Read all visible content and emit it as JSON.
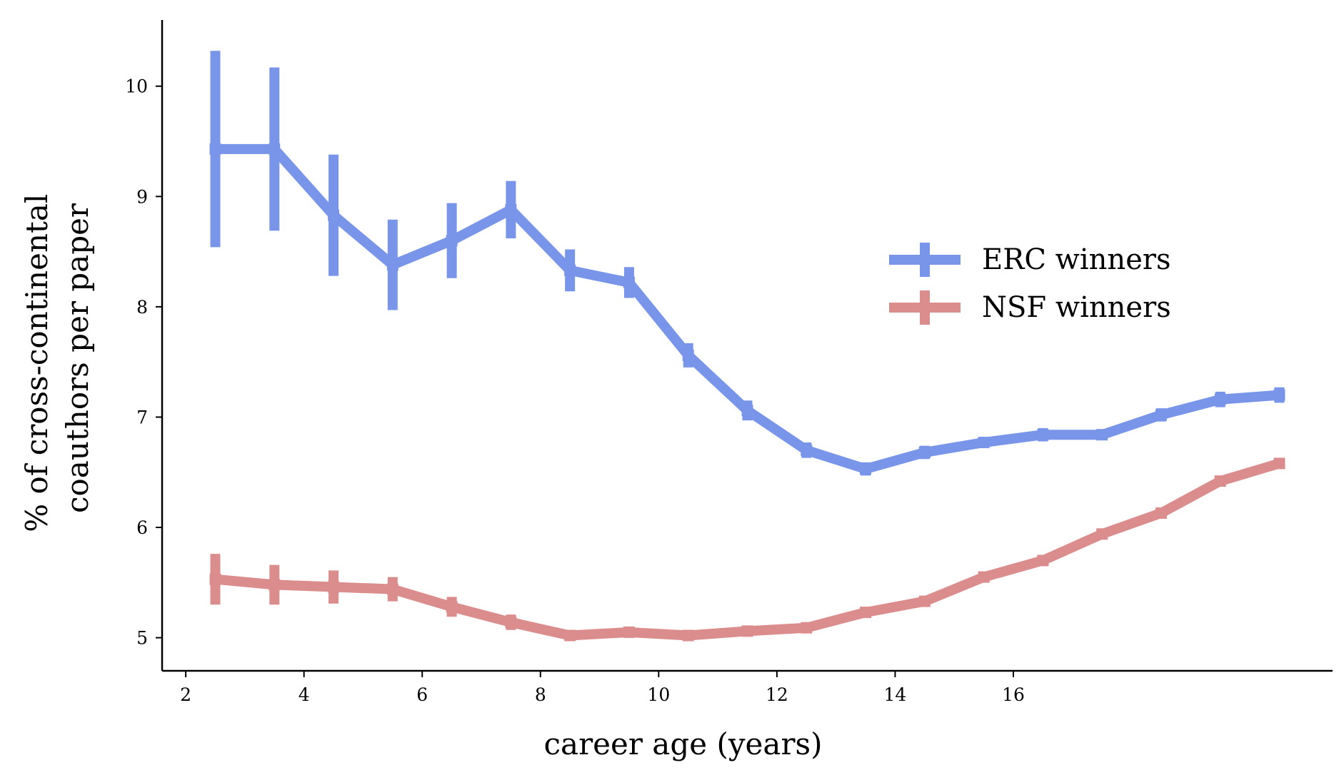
{
  "chart_data": {
    "type": "line",
    "title": "",
    "xlabel": "career age (years)",
    "ylabel": [
      "% of cross-continental",
      "coauthors per paper"
    ],
    "x_ticks": [
      2,
      4,
      6,
      8,
      10,
      12,
      14,
      16
    ],
    "y_ticks": [
      5,
      6,
      7,
      8,
      9,
      10
    ],
    "xlim": [
      1.6,
      21.4
    ],
    "ylim": [
      4.7,
      10.6
    ],
    "grid": false,
    "legend_position": "center-right",
    "x": [
      2.5,
      3.5,
      4.5,
      5.5,
      6.5,
      7.5,
      8.5,
      9.5,
      10.5,
      11.5,
      12.5,
      13.5,
      14.5,
      15.5,
      16.5,
      17.5,
      18.5,
      19.5,
      20.5
    ],
    "series": [
      {
        "name": "ERC winners",
        "color": "#4169e1",
        "values": [
          9.43,
          9.43,
          8.83,
          8.38,
          8.6,
          8.88,
          8.33,
          8.22,
          7.56,
          7.06,
          6.7,
          6.53,
          6.68,
          6.77,
          6.84,
          6.84,
          7.02,
          7.16,
          7.2
        ],
        "errors": [
          0.89,
          0.74,
          0.55,
          0.41,
          0.34,
          0.26,
          0.19,
          0.14,
          0.11,
          0.09,
          0.07,
          0.06,
          0.06,
          0.05,
          0.06,
          0.05,
          0.06,
          0.07,
          0.07
        ]
      },
      {
        "name": "NSF winners",
        "color": "#cd5c5c",
        "values": [
          5.53,
          5.48,
          5.46,
          5.44,
          5.28,
          5.14,
          5.02,
          5.05,
          5.02,
          5.06,
          5.09,
          5.23,
          5.33,
          5.55,
          5.7,
          5.94,
          6.13,
          6.42,
          6.58
        ],
        "errors": [
          0.23,
          0.18,
          0.15,
          0.11,
          0.09,
          0.07,
          0.05,
          0.04,
          0.04,
          0.03,
          0.04,
          0.04,
          0.04,
          0.04,
          0.04,
          0.04,
          0.04,
          0.04,
          0.05
        ]
      }
    ]
  }
}
